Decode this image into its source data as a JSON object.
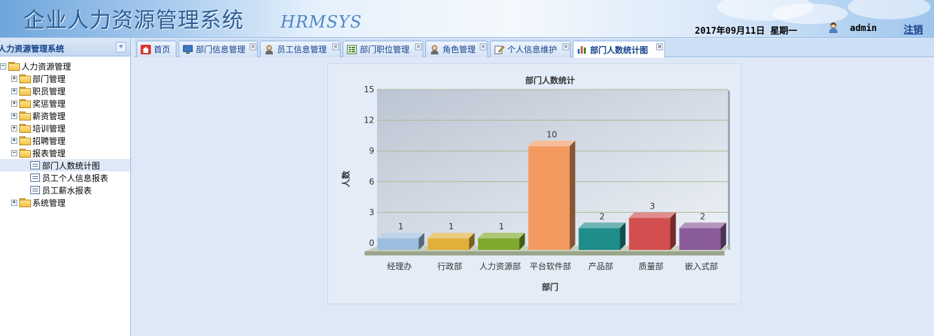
{
  "header": {
    "app_title": "企业人力资源管理系统",
    "logo_text": "HRMSYS",
    "date": "2017年09月11日 星期一",
    "username": "admin",
    "logout_label": "注销"
  },
  "sidebar": {
    "title": "人力资源管理系统",
    "collapse_icon": "«",
    "root": "人力资源管理",
    "items": [
      {
        "label": "部门管理"
      },
      {
        "label": "职员管理"
      },
      {
        "label": "奖惩管理"
      },
      {
        "label": "薪资管理"
      },
      {
        "label": "培训管理"
      },
      {
        "label": "招聘管理"
      },
      {
        "label": "报表管理"
      },
      {
        "label": "部门人数统计图"
      },
      {
        "label": "员工个人信息报表"
      },
      {
        "label": "员工薪水报表"
      },
      {
        "label": "系统管理"
      }
    ]
  },
  "tabs": [
    {
      "label": "首页",
      "icon": "home-icon"
    },
    {
      "label": "部门信息管理",
      "icon": "monitor-icon"
    },
    {
      "label": "员工信息管理",
      "icon": "user-icon"
    },
    {
      "label": "部门职位管理",
      "icon": "grid-icon"
    },
    {
      "label": "角色管理",
      "icon": "user-icon"
    },
    {
      "label": "个人信息维护",
      "icon": "edit-icon"
    },
    {
      "label": "部门人数统计图",
      "icon": "bar-chart-icon"
    }
  ],
  "colors": {
    "accent": "#15428b",
    "border": "#99bbe8"
  },
  "chart_data": {
    "type": "bar",
    "title": "部门人数统计",
    "xlabel": "部门",
    "ylabel": "人数",
    "categories": [
      "经理办",
      "行政部",
      "人力资源部",
      "平台软件部",
      "产品部",
      "质量部",
      "嵌入式部"
    ],
    "values": [
      1,
      1,
      1,
      10,
      2,
      3,
      2
    ],
    "ylim": [
      0,
      15
    ],
    "yticks": [
      "0",
      "3",
      "6",
      "9",
      "12",
      "15"
    ],
    "bar_colors": [
      "#9dbde0",
      "#e0b13a",
      "#7fa92c",
      "#f39a60",
      "#1e8d8b",
      "#d34f4f",
      "#8a5b9a"
    ],
    "grid": true
  }
}
